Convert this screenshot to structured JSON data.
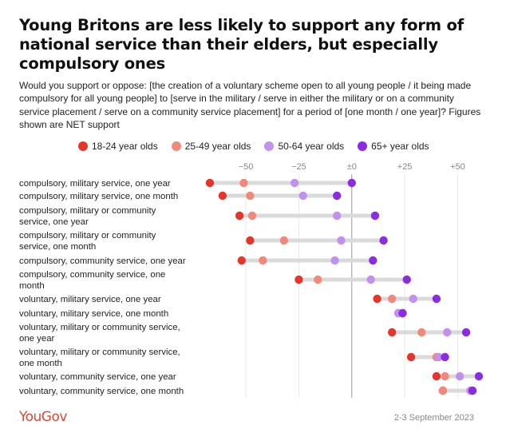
{
  "header": {
    "title": "Young Britons are less likely to support any form of national service than their elders, but especially compulsory ones",
    "subtitle": "Would you support or oppose: [the creation of a voluntary scheme open to all young people / it being made compulsory for all young people] to [serve in the military / serve in either the military or on a community service placement / serve on a community service placement] for a period of [one month / one year]? Figures shown are NET support"
  },
  "footer": {
    "brand": "YouGov",
    "date": "2-3 September 2023"
  },
  "chart_data": {
    "type": "dot",
    "xlim": [
      -70,
      60
    ],
    "x_ticks": [
      -50,
      -25,
      0,
      25,
      50
    ],
    "x_tick_labels": [
      "−50",
      "−25",
      "±0",
      "+25",
      "+50"
    ],
    "legend_position": "top",
    "series": [
      {
        "name": "18-24 year olds",
        "color": "#e8352c"
      },
      {
        "name": "25-49 year olds",
        "color": "#f2887a"
      },
      {
        "name": "50-64 year olds",
        "color": "#c290ee"
      },
      {
        "name": "65+ year olds",
        "color": "#8b2be2"
      }
    ],
    "rows": [
      {
        "label": [
          "compulsory, military service, one year"
        ],
        "values": [
          -67,
          -51,
          -27,
          0
        ]
      },
      {
        "label": [
          "compulsory, military service, one month"
        ],
        "values": [
          -61,
          -48,
          -23,
          -7
        ]
      },
      {
        "label": [
          "compulsory, military or community",
          "service, one year"
        ],
        "values": [
          -53,
          -47,
          -7,
          11
        ]
      },
      {
        "label": [
          "compulsory, military or community",
          "service, one month"
        ],
        "values": [
          -48,
          -32,
          -5,
          15
        ]
      },
      {
        "label": [
          "compulsory, community service, one year"
        ],
        "values": [
          -52,
          -42,
          -8,
          10
        ]
      },
      {
        "label": [
          "compulsory, community service, one",
          "month"
        ],
        "values": [
          -25,
          -16,
          9,
          26
        ]
      },
      {
        "label": [
          "voluntary, military service, one year"
        ],
        "values": [
          12,
          19,
          29,
          40
        ]
      },
      {
        "label": [
          "voluntary, military service, one month"
        ],
        "values": [
          22,
          24,
          22,
          24
        ]
      },
      {
        "label": [
          "voluntary, military or community service,",
          "one year"
        ],
        "values": [
          19,
          33,
          45,
          54
        ]
      },
      {
        "label": [
          "voluntary, military or community service,",
          "one month"
        ],
        "values": [
          28,
          40,
          41,
          44
        ]
      },
      {
        "label": [
          "voluntary, community service, one year"
        ],
        "values": [
          40,
          44,
          51,
          60
        ]
      },
      {
        "label": [
          "voluntary, community service, one month"
        ],
        "values": [
          43,
          43,
          56,
          57
        ]
      }
    ]
  }
}
